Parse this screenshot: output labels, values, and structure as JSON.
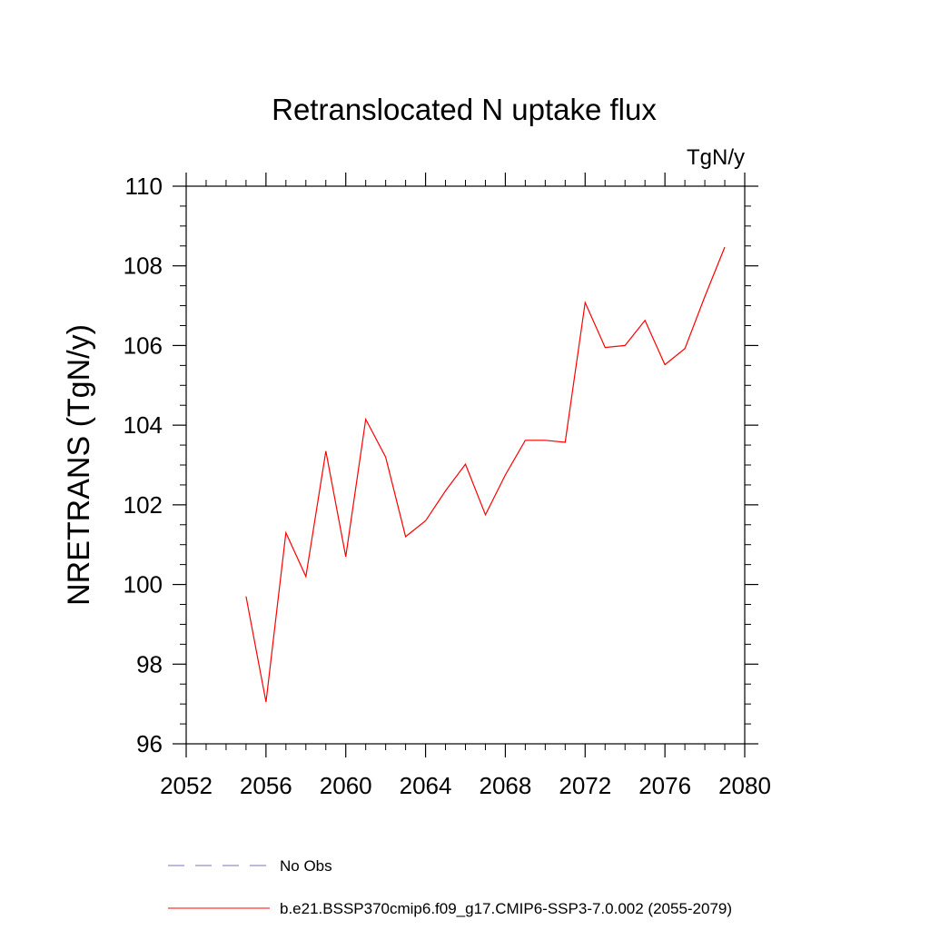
{
  "chart_data": {
    "type": "line",
    "title": "Retranslocated N uptake flux",
    "units": "TgN/y",
    "ylabel": "NRETRANS  (TgN/y)",
    "xlabel": "",
    "xlim": [
      2052,
      2080
    ],
    "ylim": [
      96,
      110
    ],
    "xticks": [
      2052,
      2056,
      2060,
      2064,
      2068,
      2072,
      2076,
      2080
    ],
    "yticks": [
      96,
      98,
      100,
      102,
      104,
      106,
      108,
      110
    ],
    "x_minor_step": 1,
    "y_minor_step": 0.5,
    "grid": false,
    "legend_position": "below",
    "series": [
      {
        "name": "b.e21.BSSP370cmip6.f09_g17.CMIP6-SSP3-7.0.002 (2055-2079)",
        "color": "#ff0000",
        "dash": "solid",
        "x": [
          2055,
          2056,
          2057,
          2058,
          2059,
          2060,
          2061,
          2062,
          2063,
          2064,
          2065,
          2066,
          2067,
          2068,
          2069,
          2070,
          2071,
          2072,
          2073,
          2074,
          2075,
          2076,
          2077,
          2078,
          2079
        ],
        "y": [
          99.7,
          97.05,
          101.3,
          100.2,
          103.35,
          100.7,
          104.15,
          103.2,
          101.2,
          101.6,
          102.35,
          103.02,
          101.75,
          102.75,
          103.62,
          103.62,
          103.57,
          107.08,
          105.95,
          106.0,
          106.63,
          105.52,
          105.92,
          107.23,
          108.47
        ]
      }
    ],
    "legend": [
      {
        "label": "No Obs",
        "color": "#7f6fc0",
        "dash": "dashed"
      },
      {
        "label": "b.e21.BSSP370cmip6.f09_g17.CMIP6-SSP3-7.0.002 (2055-2079)",
        "color": "#ff0000",
        "dash": "solid"
      }
    ]
  }
}
